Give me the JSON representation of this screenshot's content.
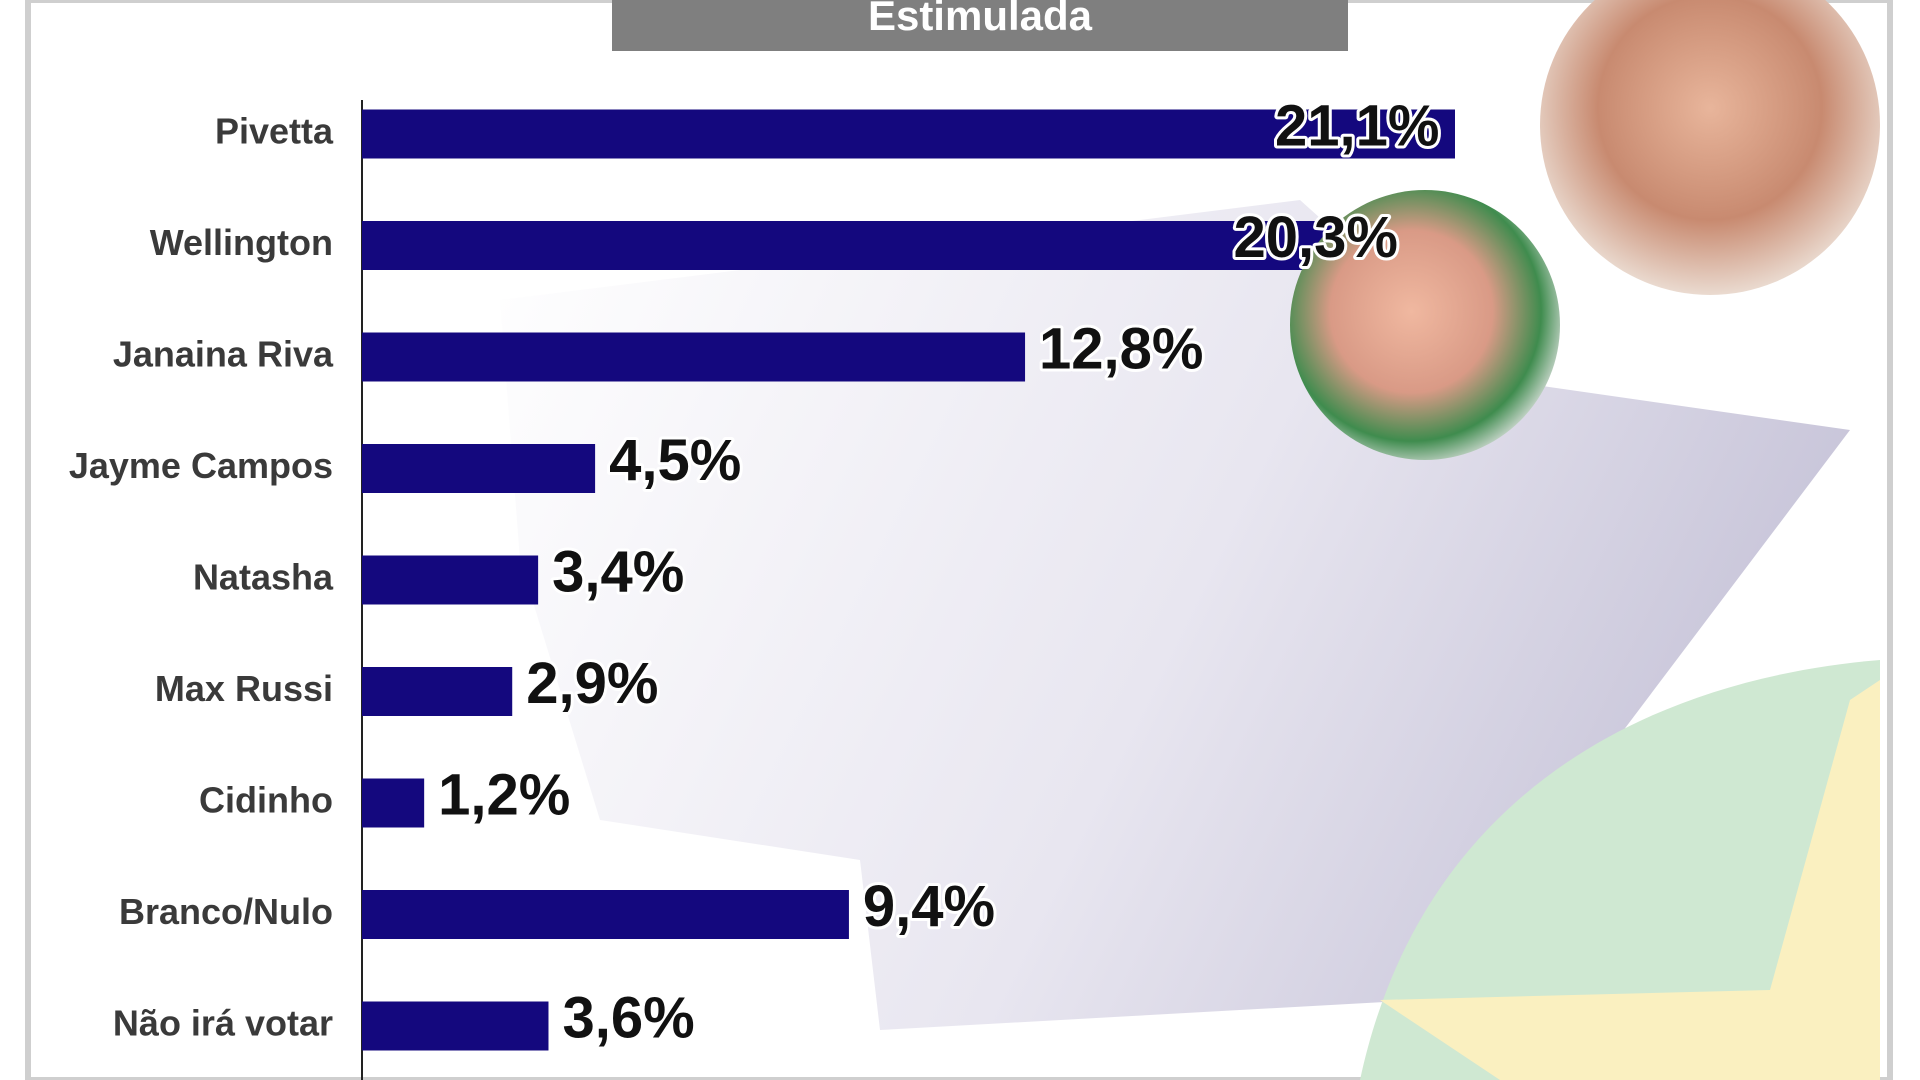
{
  "chart_data": {
    "type": "bar",
    "orientation": "horizontal",
    "title": "Estimulada",
    "categories": [
      "Pivetta",
      "Wellington",
      "Janaina Riva",
      "Jayme Campos",
      "Natasha",
      "Max Russi",
      "Cidinho",
      "Branco/Nulo",
      "Não irá votar"
    ],
    "values": [
      21.1,
      20.3,
      12.8,
      4.5,
      3.4,
      2.9,
      1.2,
      9.4,
      3.6
    ],
    "value_labels": [
      "21,1%",
      "20,3%",
      "12,8%",
      "4,5%",
      "3,4%",
      "2,9%",
      "1,2%",
      "9,4%",
      "3,6%"
    ],
    "color": "#14087e"
  }
}
